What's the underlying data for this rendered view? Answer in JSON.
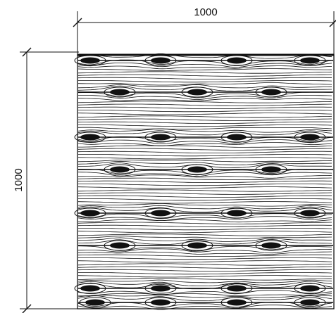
{
  "dimensions": {
    "width_label": "1000",
    "height_label": "1000"
  },
  "panel": {
    "pattern": "wood-grain-with-knots",
    "knot_rows": 8,
    "knots_per_row": [
      4,
      3,
      4,
      3,
      4,
      3,
      4,
      4
    ]
  },
  "colors": {
    "ink": "#111111",
    "background": "#ffffff"
  }
}
